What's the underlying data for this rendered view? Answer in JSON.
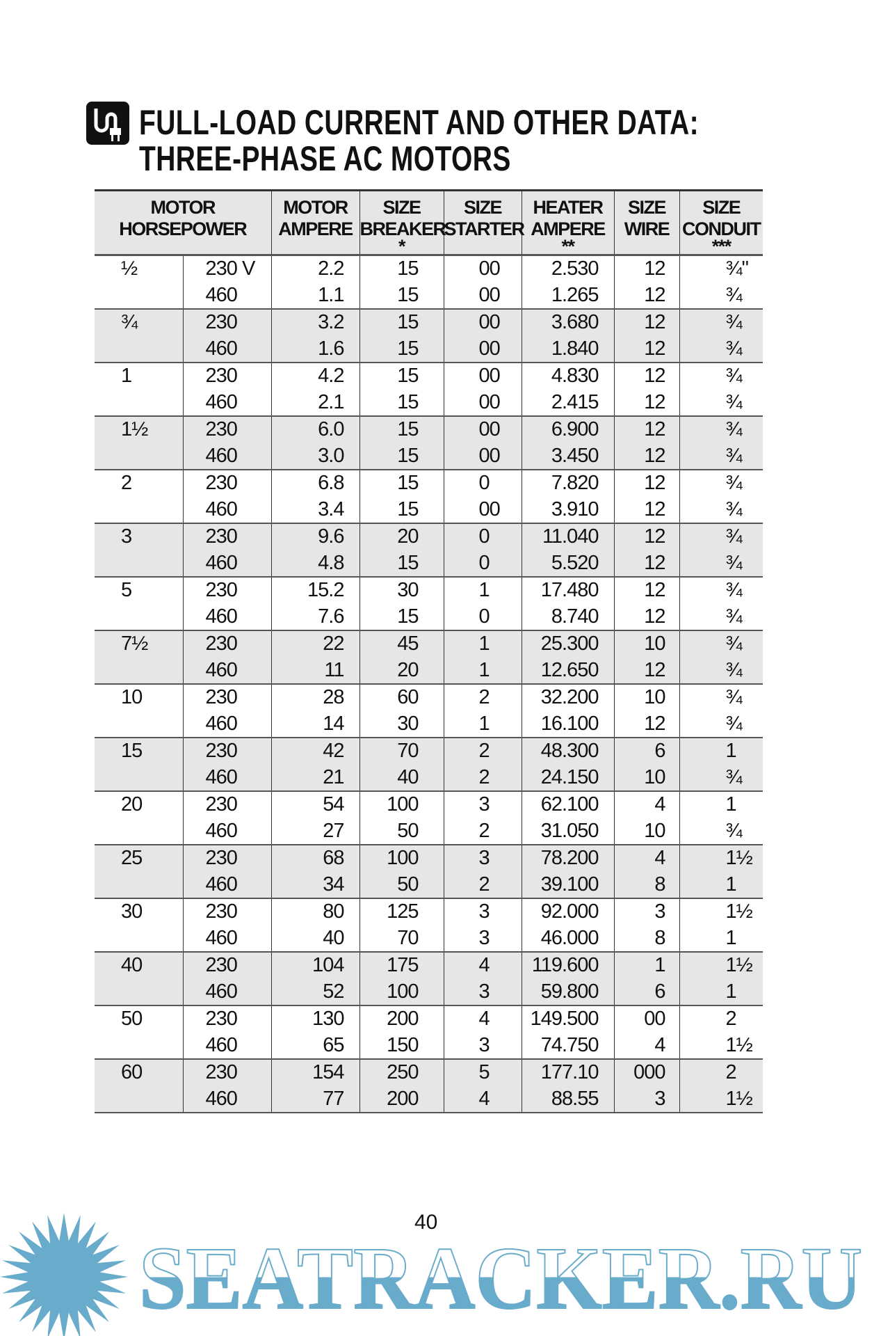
{
  "title": {
    "line1": "FULL-LOAD CURRENT AND OTHER DATA:",
    "line2": "THREE-PHASE AC MOTORS",
    "icon": "plug-icon"
  },
  "headers": [
    {
      "l1": "MOTOR",
      "l2": "HORSEPOWER",
      "l3": ""
    },
    {
      "l1": "MOTOR",
      "l2": "AMPERE",
      "l3": ""
    },
    {
      "l1": "SIZE",
      "l2": "BREAKER",
      "l3": "*"
    },
    {
      "l1": "SIZE",
      "l2": "STARTER",
      "l3": ""
    },
    {
      "l1": "HEATER",
      "l2": "AMPERE",
      "l3": "**"
    },
    {
      "l1": "SIZE",
      "l2": "WIRE",
      "l3": ""
    },
    {
      "l1": "SIZE",
      "l2": "CONDUIT",
      "l3": "***"
    }
  ],
  "groups": [
    {
      "hp": "½",
      "rows": [
        [
          "230 V",
          "2.2",
          "15",
          "00",
          "2.530",
          "12",
          "¾\""
        ],
        [
          "460",
          "1.1",
          "15",
          "00",
          "1.265",
          "12",
          "¾"
        ]
      ]
    },
    {
      "hp": "¾",
      "rows": [
        [
          "230",
          "3.2",
          "15",
          "00",
          "3.680",
          "12",
          "¾"
        ],
        [
          "460",
          "1.6",
          "15",
          "00",
          "1.840",
          "12",
          "¾"
        ]
      ]
    },
    {
      "hp": "1",
      "rows": [
        [
          "230",
          "4.2",
          "15",
          "00",
          "4.830",
          "12",
          "¾"
        ],
        [
          "460",
          "2.1",
          "15",
          "00",
          "2.415",
          "12",
          "¾"
        ]
      ]
    },
    {
      "hp": "1½",
      "rows": [
        [
          "230",
          "6.0",
          "15",
          "00",
          "6.900",
          "12",
          "¾"
        ],
        [
          "460",
          "3.0",
          "15",
          "00",
          "3.450",
          "12",
          "¾"
        ]
      ]
    },
    {
      "hp": "2",
      "rows": [
        [
          "230",
          "6.8",
          "15",
          "0",
          "7.820",
          "12",
          "¾"
        ],
        [
          "460",
          "3.4",
          "15",
          "00",
          "3.910",
          "12",
          "¾"
        ]
      ]
    },
    {
      "hp": "3",
      "rows": [
        [
          "230",
          "9.6",
          "20",
          "0",
          "11.040",
          "12",
          "¾"
        ],
        [
          "460",
          "4.8",
          "15",
          "0",
          "5.520",
          "12",
          "¾"
        ]
      ]
    },
    {
      "hp": "5",
      "rows": [
        [
          "230",
          "15.2",
          "30",
          "1",
          "17.480",
          "12",
          "¾"
        ],
        [
          "460",
          "7.6",
          "15",
          "0",
          "8.740",
          "12",
          "¾"
        ]
      ]
    },
    {
      "hp": "7½",
      "rows": [
        [
          "230",
          "22",
          "45",
          "1",
          "25.300",
          "10",
          "¾"
        ],
        [
          "460",
          "11",
          "20",
          "1",
          "12.650",
          "12",
          "¾"
        ]
      ]
    },
    {
      "hp": "10",
      "rows": [
        [
          "230",
          "28",
          "60",
          "2",
          "32.200",
          "10",
          "¾"
        ],
        [
          "460",
          "14",
          "30",
          "1",
          "16.100",
          "12",
          "¾"
        ]
      ]
    },
    {
      "hp": "15",
      "rows": [
        [
          "230",
          "42",
          "70",
          "2",
          "48.300",
          "6",
          "1"
        ],
        [
          "460",
          "21",
          "40",
          "2",
          "24.150",
          "10",
          "¾"
        ]
      ]
    },
    {
      "hp": "20",
      "rows": [
        [
          "230",
          "54",
          "100",
          "3",
          "62.100",
          "4",
          "1"
        ],
        [
          "460",
          "27",
          "50",
          "2",
          "31.050",
          "10",
          "¾"
        ]
      ]
    },
    {
      "hp": "25",
      "rows": [
        [
          "230",
          "68",
          "100",
          "3",
          "78.200",
          "4",
          "1½"
        ],
        [
          "460",
          "34",
          "50",
          "2",
          "39.100",
          "8",
          "1"
        ]
      ]
    },
    {
      "hp": "30",
      "rows": [
        [
          "230",
          "80",
          "125",
          "3",
          "92.000",
          "3",
          "1½"
        ],
        [
          "460",
          "40",
          "70",
          "3",
          "46.000",
          "8",
          "1"
        ]
      ]
    },
    {
      "hp": "40",
      "rows": [
        [
          "230",
          "104",
          "175",
          "4",
          "119.600",
          "1",
          "1½"
        ],
        [
          "460",
          "52",
          "100",
          "3",
          "59.800",
          "6",
          "1"
        ]
      ]
    },
    {
      "hp": "50",
      "rows": [
        [
          "230",
          "130",
          "200",
          "4",
          "149.500",
          "00",
          "2"
        ],
        [
          "460",
          "65",
          "150",
          "3",
          "74.750",
          "4",
          "1½"
        ]
      ]
    },
    {
      "hp": "60",
      "rows": [
        [
          "230",
          "154",
          "250",
          "5",
          "177.10",
          "000",
          "2"
        ],
        [
          "460",
          "77",
          "200",
          "4",
          "88.55",
          "3",
          "1½"
        ]
      ]
    }
  ],
  "page_number": "40",
  "watermark": {
    "text": "SEATRACKER.RU",
    "color": "#68abcb"
  },
  "colors": {
    "shade": "#e6e6e6"
  }
}
